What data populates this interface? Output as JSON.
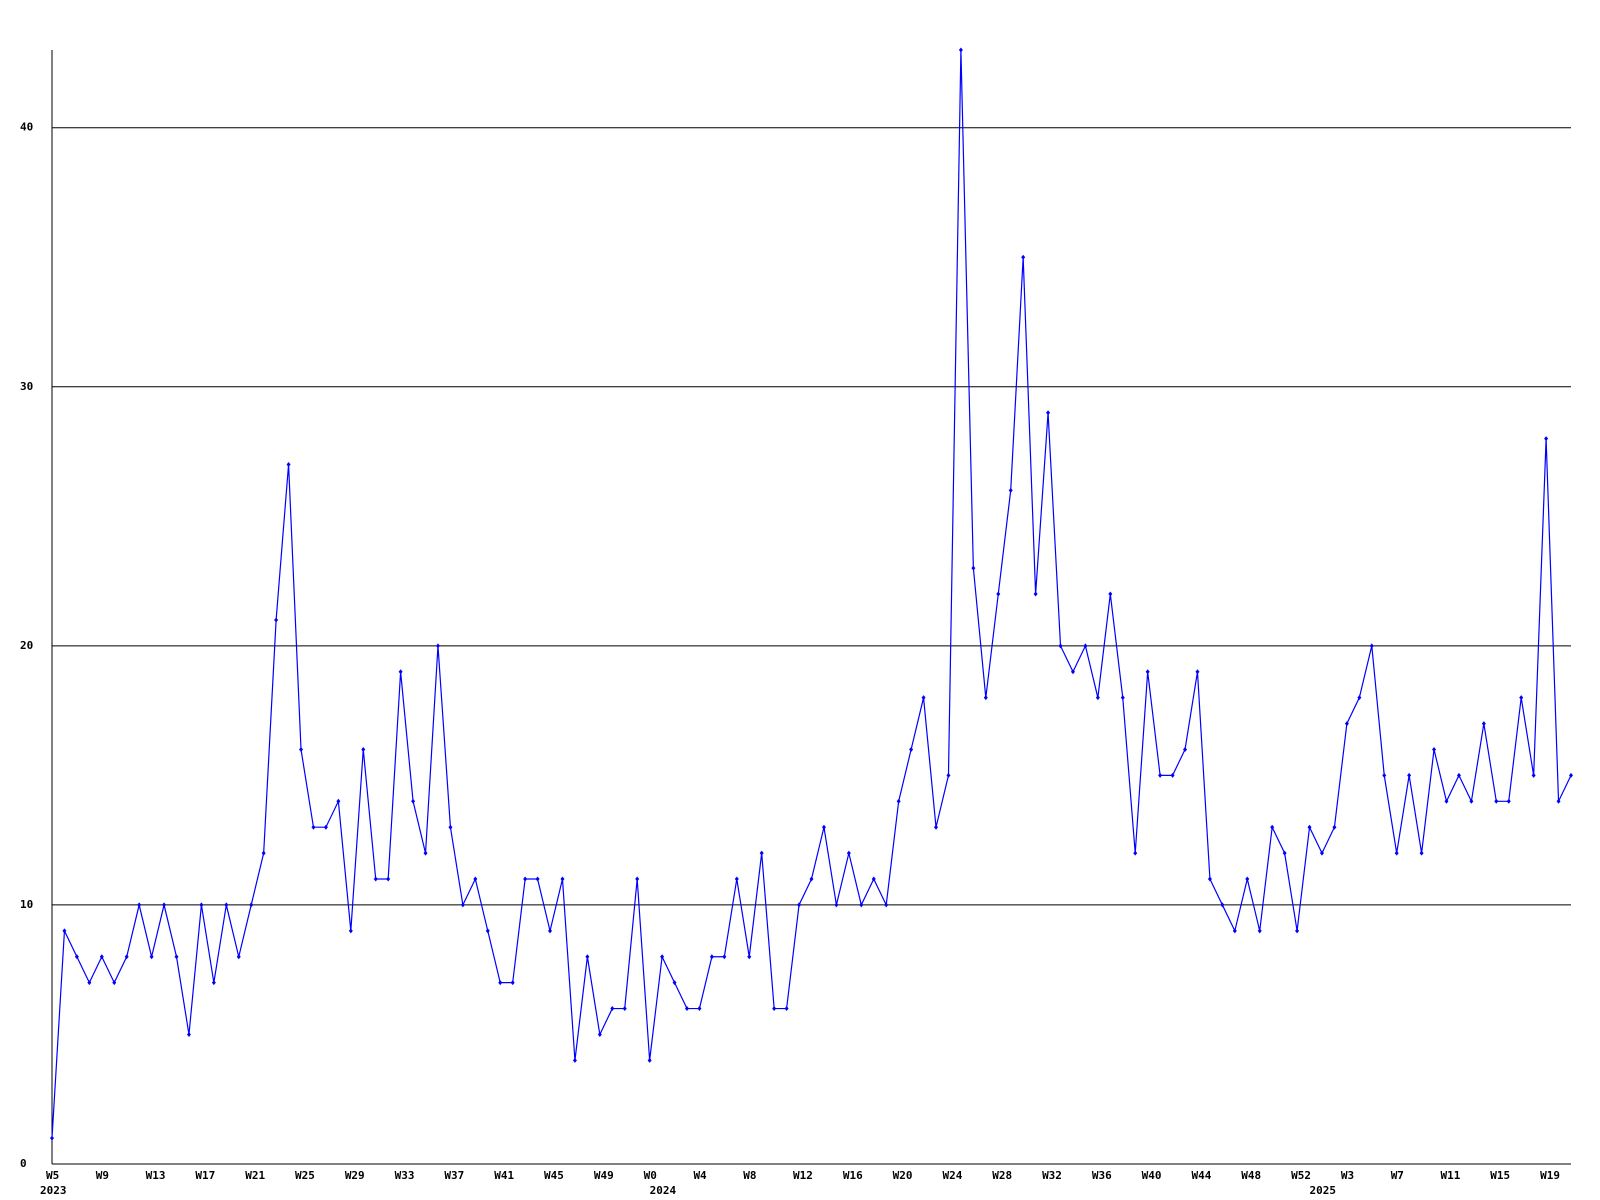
{
  "chart_data": {
    "type": "line",
    "categories": [
      "W5",
      null,
      null,
      null,
      "W9",
      null,
      null,
      null,
      "W13",
      null,
      null,
      null,
      "W17",
      null,
      null,
      null,
      "W21",
      null,
      null,
      null,
      "W25",
      null,
      null,
      null,
      "W29",
      null,
      null,
      null,
      "W33",
      null,
      null,
      null,
      "W37",
      null,
      null,
      null,
      "W41",
      null,
      null,
      null,
      "W45",
      null,
      null,
      null,
      "W49",
      null,
      null,
      null,
      "W0",
      null,
      null,
      null,
      "W4",
      null,
      null,
      null,
      "W8",
      null,
      null,
      null,
      "W12",
      null,
      null,
      null,
      "W16",
      null,
      null,
      null,
      "W20",
      null,
      null,
      null,
      "W24",
      null,
      null,
      null,
      "W28",
      null,
      null,
      null,
      "W32",
      null,
      null,
      null,
      "W36",
      null,
      null,
      null,
      "W40",
      null,
      null,
      null,
      "W44",
      null,
      null,
      null,
      "W48",
      null,
      null,
      null,
      "W52",
      null,
      null,
      null,
      "W3",
      null,
      null,
      null,
      "W7",
      null,
      null,
      null,
      "W11",
      null,
      null,
      null,
      "W15",
      null,
      null,
      null,
      "W19",
      null,
      null
    ],
    "year_labels": [
      "2023",
      null,
      null,
      null,
      null,
      null,
      null,
      null,
      null,
      null,
      null,
      null,
      null,
      null,
      null,
      null,
      null,
      null,
      null,
      null,
      null,
      null,
      null,
      null,
      null,
      null,
      null,
      null,
      null,
      null,
      null,
      null,
      null,
      null,
      null,
      null,
      null,
      null,
      null,
      null,
      null,
      null,
      null,
      null,
      null,
      null,
      null,
      null,
      "2024",
      null,
      null,
      null,
      null,
      null,
      null,
      null,
      null,
      null,
      null,
      null,
      null,
      null,
      null,
      null,
      null,
      null,
      null,
      null,
      null,
      null,
      null,
      null,
      null,
      null,
      null,
      null,
      null,
      null,
      null,
      null,
      null,
      null,
      null,
      null,
      null,
      null,
      null,
      null,
      null,
      null,
      null,
      null,
      null,
      null,
      null,
      null,
      null,
      null,
      null,
      null,
      null,
      "2025",
      null,
      null,
      null,
      null,
      null,
      null,
      null,
      null,
      null,
      null,
      null,
      null,
      null,
      null,
      null,
      null,
      null,
      null,
      null,
      null,
      null
    ],
    "series": [
      {
        "color": "#0000ff",
        "values": [
          1,
          9,
          8,
          7,
          8,
          7,
          8,
          10,
          8,
          10,
          8,
          5,
          10,
          7,
          10,
          8,
          10,
          12,
          21,
          27,
          16,
          13,
          13,
          14,
          9,
          16,
          11,
          11,
          19,
          14,
          12,
          20,
          13,
          10,
          11,
          9,
          7,
          7,
          11,
          11,
          9,
          11,
          4,
          8,
          5,
          6,
          6,
          11,
          4,
          8,
          7,
          6,
          6,
          8,
          8,
          11,
          8,
          12,
          6,
          6,
          10,
          11,
          13,
          10,
          12,
          10,
          11,
          10,
          14,
          16,
          18,
          13,
          15,
          43,
          23,
          18,
          22,
          26,
          35,
          22,
          29,
          20,
          19,
          20,
          18,
          22,
          18,
          12,
          19,
          15,
          15,
          16,
          19,
          11,
          10,
          9,
          11,
          9,
          13,
          12,
          9,
          13,
          12,
          13,
          17,
          18,
          20,
          15,
          12,
          15,
          12,
          16,
          14,
          15,
          14,
          17,
          14,
          14,
          18,
          15,
          28,
          14,
          15
        ]
      }
    ],
    "ylim": [
      0,
      43
    ],
    "yticks": [
      0,
      10,
      20,
      30,
      40
    ],
    "grid": true
  }
}
